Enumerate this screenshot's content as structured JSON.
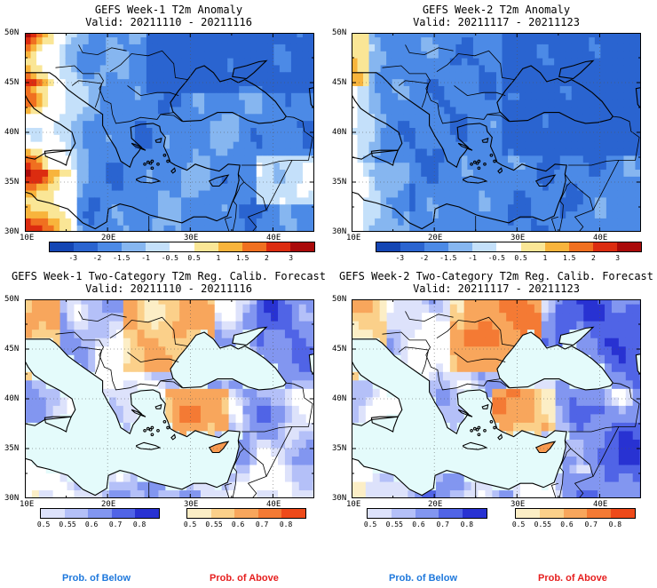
{
  "panels": [
    {
      "title": "GEFS Week-1 T2m Anomaly",
      "valid": "Valid: 20211110 - 20211116",
      "kind": "anomaly",
      "week": 1
    },
    {
      "title": "GEFS Week-2 T2m Anomaly",
      "valid": "Valid: 20211117 - 20211123",
      "kind": "anomaly",
      "week": 2
    },
    {
      "title": "GEFS Week-1 Two-Category T2m Reg. Calib. Forecast",
      "valid": "Valid: 20211110 - 20211116",
      "kind": "prob",
      "week": 1
    },
    {
      "title": "GEFS Week-2 Two-Category T2m Reg. Calib. Forecast",
      "valid": "Valid: 20211117 - 20211123",
      "kind": "prob",
      "week": 2
    }
  ],
  "axes": {
    "lat_labels": [
      "50N",
      "45N",
      "40N",
      "35N",
      "30N"
    ],
    "lon_labels": [
      "10E",
      "20E",
      "30E",
      "40E"
    ]
  },
  "anomaly_colorbar": {
    "labels": [
      "-3",
      "-2",
      "-1.5",
      "-1",
      "-0.5",
      "0.5",
      "1",
      "1.5",
      "2",
      "3"
    ],
    "colors": [
      "#1446b4",
      "#2a64d0",
      "#4c8ae6",
      "#86b6f0",
      "#c4e0fa",
      "#ffffff",
      "#fae696",
      "#f8b43c",
      "#f07020",
      "#dc2c10",
      "#aa0a0a"
    ]
  },
  "below_colorbar": {
    "labels": [
      "0.5",
      "0.55",
      "0.6",
      "0.7",
      "0.8"
    ],
    "colors": [
      "#dde2fb",
      "#b4c0f8",
      "#8296f0",
      "#5064e6",
      "#2832d2"
    ]
  },
  "above_colorbar": {
    "labels": [
      "0.5",
      "0.55",
      "0.6",
      "0.7",
      "0.8"
    ],
    "colors": [
      "#fceec6",
      "#fbd08a",
      "#f8a65c",
      "#f47a34",
      "#ee4a1a"
    ]
  },
  "legend": {
    "below": "Prob. of Below",
    "above": "Prob. of Above",
    "below_color": "#1e78dc",
    "above_color": "#e61e1e"
  }
}
